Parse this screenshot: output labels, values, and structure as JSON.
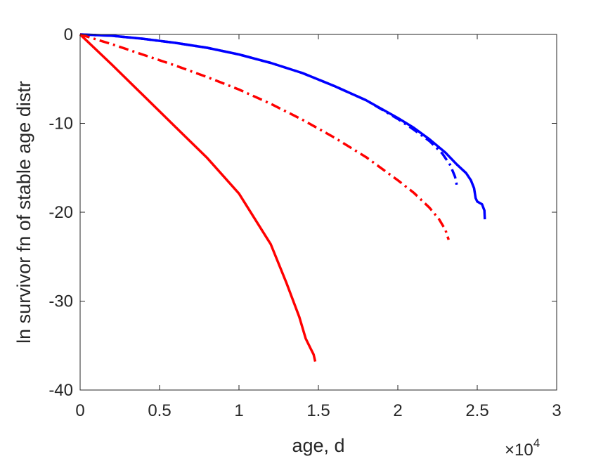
{
  "chart_data": {
    "type": "line",
    "title": "",
    "xlabel": "age, d",
    "ylabel": "ln survivor fn of stable age distr",
    "x_exponent_label": {
      "base": "×10",
      "exponent": "4"
    },
    "xlim": [
      0,
      30000
    ],
    "ylim": [
      -40,
      0
    ],
    "xticks": [
      0,
      5000,
      10000,
      15000,
      20000,
      25000,
      30000
    ],
    "xtick_labels": [
      "0",
      "0.5",
      "1",
      "1.5",
      "2",
      "2.5",
      "3"
    ],
    "yticks": [
      0,
      -10,
      -20,
      -30,
      -40
    ],
    "ytick_labels": [
      "0",
      "-10",
      "-20",
      "-30",
      "-40"
    ],
    "grid": false,
    "series": [
      {
        "color": "#0000ff",
        "style": "solid",
        "x": [
          0,
          2000,
          4000,
          6000,
          8000,
          10000,
          12000,
          14000,
          16000,
          18000,
          20000,
          21000,
          22000,
          23000,
          23700,
          24300,
          24600,
          24800,
          24900,
          25000,
          25300,
          25450,
          25480
        ],
        "y": [
          0,
          -0.15,
          -0.5,
          -0.95,
          -1.5,
          -2.25,
          -3.2,
          -4.35,
          -5.8,
          -7.4,
          -9.4,
          -10.5,
          -11.8,
          -13.3,
          -14.6,
          -15.6,
          -16.4,
          -17.3,
          -18.4,
          -18.8,
          -19.1,
          -19.8,
          -20.8
        ]
      },
      {
        "color": "#0000ff",
        "style": "dashdot",
        "x": [
          0,
          2000,
          4000,
          6000,
          8000,
          10000,
          12000,
          14000,
          16000,
          18000,
          20000,
          21000,
          22000,
          22800,
          23300,
          23600,
          23750
        ],
        "y": [
          0,
          -0.15,
          -0.5,
          -0.95,
          -1.5,
          -2.25,
          -3.2,
          -4.35,
          -5.8,
          -7.4,
          -9.5,
          -10.7,
          -12.0,
          -13.4,
          -14.7,
          -16.0,
          -17.3
        ]
      },
      {
        "color": "#ff0000",
        "style": "dashdot",
        "x": [
          0,
          2000,
          4000,
          6000,
          8000,
          10000,
          12000,
          14000,
          16000,
          18000,
          20000,
          21000,
          22000,
          22600,
          23000,
          23200
        ],
        "y": [
          0,
          -1.1,
          -2.3,
          -3.5,
          -4.8,
          -6.2,
          -7.8,
          -9.6,
          -11.6,
          -13.8,
          -16.4,
          -17.8,
          -19.5,
          -20.8,
          -22.0,
          -23.1
        ]
      },
      {
        "color": "#ff0000",
        "style": "solid",
        "x": [
          0,
          2000,
          4000,
          6000,
          8000,
          10000,
          12000,
          13000,
          13800,
          14200,
          14500,
          14700,
          14800
        ],
        "y": [
          0,
          -3.4,
          -6.9,
          -10.4,
          -13.9,
          -17.9,
          -23.6,
          -28.0,
          -31.8,
          -34.2,
          -35.3,
          -36.0,
          -36.8
        ]
      }
    ]
  }
}
